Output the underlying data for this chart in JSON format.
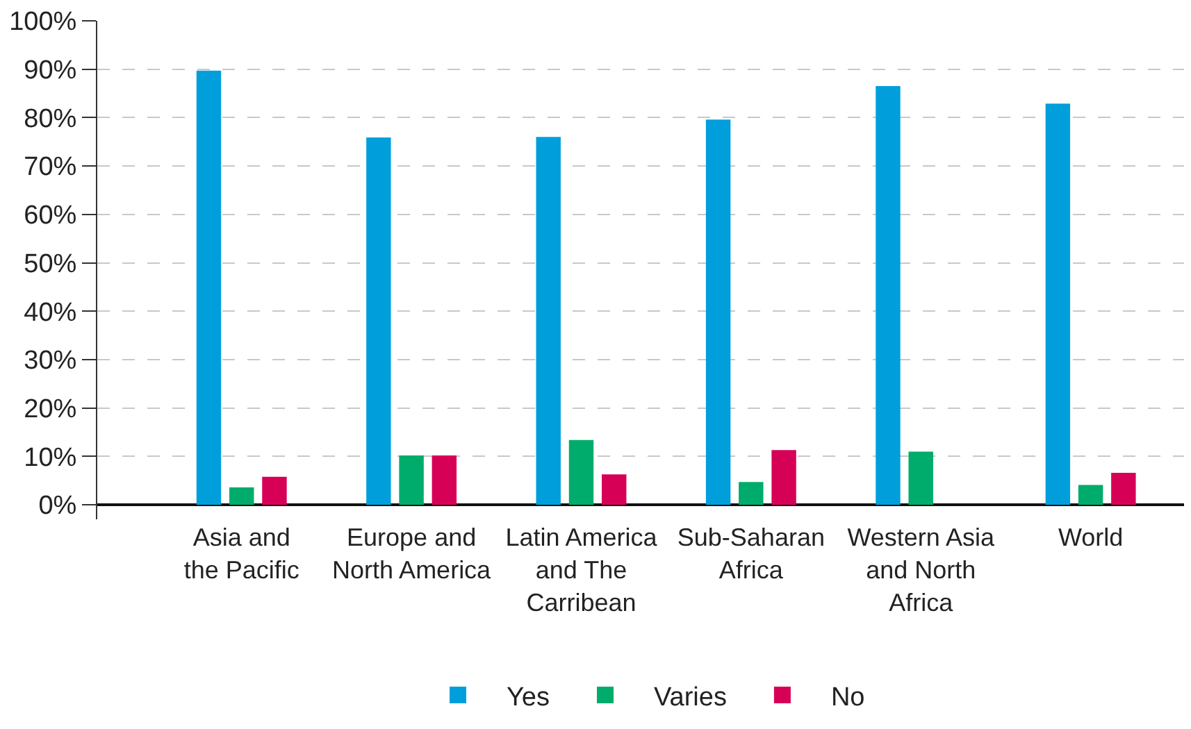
{
  "chart_data": {
    "type": "bar",
    "categories": [
      "Asia and\nthe Pacific",
      "Europe and\nNorth America",
      "Latin America\nand The\nCarribean",
      "Sub-Saharan\nAfrica",
      "Western Asia\nand North\nAfrica",
      "World"
    ],
    "series": [
      {
        "name": "Yes",
        "color": "#009fdb",
        "values": [
          89.7,
          75.9,
          76.0,
          79.6,
          86.5,
          82.9
        ]
      },
      {
        "name": "Varies",
        "color": "#00ac6b",
        "values": [
          3.6,
          10.2,
          13.4,
          4.7,
          11.0,
          4.1
        ]
      },
      {
        "name": "No",
        "color": "#d70057",
        "values": [
          5.8,
          10.2,
          6.3,
          11.3,
          null,
          6.6
        ]
      }
    ],
    "ylim": [
      -3,
      100
    ],
    "yticks": [
      {
        "value": 0,
        "label": "0%"
      },
      {
        "value": 10,
        "label": "10%"
      },
      {
        "value": 20,
        "label": "20%"
      },
      {
        "value": 30,
        "label": "30%"
      },
      {
        "value": 40,
        "label": "40%"
      },
      {
        "value": 50,
        "label": "50%"
      },
      {
        "value": 60,
        "label": "60%"
      },
      {
        "value": 70,
        "label": "70%"
      },
      {
        "value": 80,
        "label": "80%"
      },
      {
        "value": 90,
        "label": "90%"
      },
      {
        "value": 100,
        "label": "100%"
      }
    ],
    "grid": "y",
    "legend": "bottom"
  }
}
